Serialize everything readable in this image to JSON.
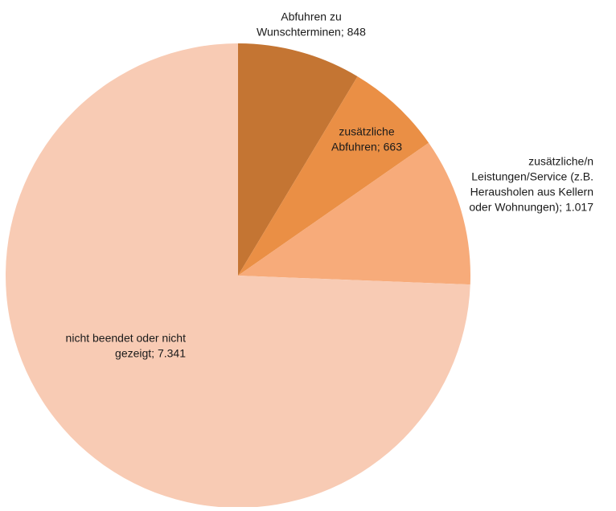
{
  "chart_data": {
    "type": "pie",
    "title": "",
    "start": "12 o'clock",
    "direction": "clockwise",
    "legend": "none",
    "slices": [
      {
        "key": "wunschtermine",
        "label_lines": [
          "Abfuhren zu",
          "Wunschterminen; 848"
        ],
        "value": 848,
        "color": "#C47533"
      },
      {
        "key": "zusaetzliche-abfuhren",
        "label_lines": [
          "zusätzliche",
          "Abfuhren; 663"
        ],
        "value": 663,
        "color": "#EA8F45"
      },
      {
        "key": "leistungen-service",
        "label_lines": [
          "zusätzliche/n",
          "Leistungen/Service (z.B.",
          "Herausholen aus Kellern",
          "oder Wohnungen); 1.017"
        ],
        "value": 1017,
        "color": "#F7AB7A"
      },
      {
        "key": "nicht-beendet",
        "label_lines": [
          "nicht beendet oder nicht",
          "gezeigt; 7.341"
        ],
        "value": 7341,
        "color": "#F8CBB4"
      }
    ]
  }
}
